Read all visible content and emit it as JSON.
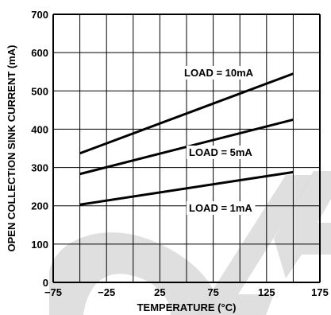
{
  "chart_data": {
    "type": "line",
    "xlabel": "TEMPERATURE (°C)",
    "ylabel": "OPEN COLLECTION SINK CURRENT (mA)",
    "xlim": [
      -75,
      175
    ],
    "ylim": [
      0,
      700
    ],
    "x_ticks": [
      "−75",
      "−25",
      "25",
      "75",
      "125",
      "175"
    ],
    "x_tick_values": [
      -75,
      -25,
      25,
      75,
      125,
      175
    ],
    "y_ticks": [
      "0",
      "100",
      "200",
      "300",
      "400",
      "500",
      "600",
      "700"
    ],
    "y_tick_values": [
      0,
      100,
      200,
      300,
      400,
      500,
      600,
      700
    ],
    "grid": true,
    "series": [
      {
        "name": "LOAD = 10mA",
        "x": [
          -50,
          150
        ],
        "values": [
          337,
          545
        ]
      },
      {
        "name": "LOAD = 5mA",
        "x": [
          -50,
          150
        ],
        "values": [
          283,
          425
        ]
      },
      {
        "name": "LOAD = 1mA",
        "x": [
          -50,
          150
        ],
        "values": [
          203,
          288
        ]
      }
    ]
  },
  "colors": {
    "line": "#000000",
    "grid": "#000000",
    "watermark": "#dcdcdc",
    "background": "#ffffff"
  }
}
